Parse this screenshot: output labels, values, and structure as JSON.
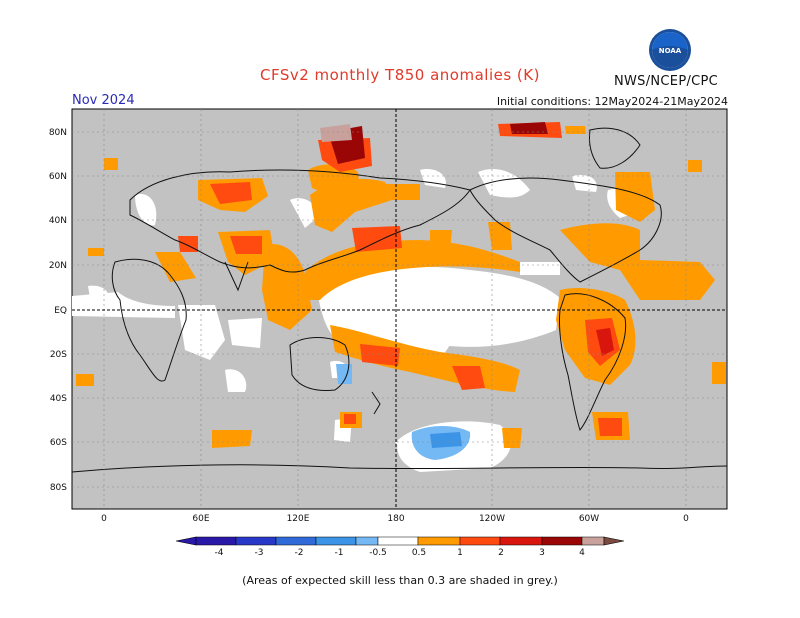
{
  "header": {
    "title": "CFSv2 monthly T850 anomalies (K)",
    "month": "Nov 2024",
    "agency": "NWS/NCEP/CPC",
    "initial_conditions": "Initial conditions: 12May2024-21May2024",
    "logo_text": "NOAA"
  },
  "map": {
    "lat_labels": [
      "80N",
      "60N",
      "40N",
      "20N",
      "EQ",
      "20S",
      "40S",
      "60S",
      "80S"
    ],
    "lon_labels": [
      "0",
      "60E",
      "120E",
      "180",
      "120W",
      "60W",
      "0"
    ],
    "grid": true
  },
  "colorbar": {
    "ticks": [
      "-4",
      "-3",
      "-2",
      "-1",
      "-0.5",
      "0.5",
      "1",
      "2",
      "3",
      "4"
    ],
    "colors": [
      "#2a18a8",
      "#2838c8",
      "#2f6ad8",
      "#3b94e6",
      "#74b8f4",
      "#ffffff",
      "#ff9b00",
      "#ff4a10",
      "#d8160e",
      "#9a0606",
      "#c8a09c",
      "#7a4a40"
    ]
  },
  "footnote": "(Areas of expected skill less than 0.3 are shaded in grey.)",
  "colors": {
    "skill_grey": "#c2c2c2",
    "title_red": "#e03a2a",
    "month_blue": "#2a2ab8"
  }
}
